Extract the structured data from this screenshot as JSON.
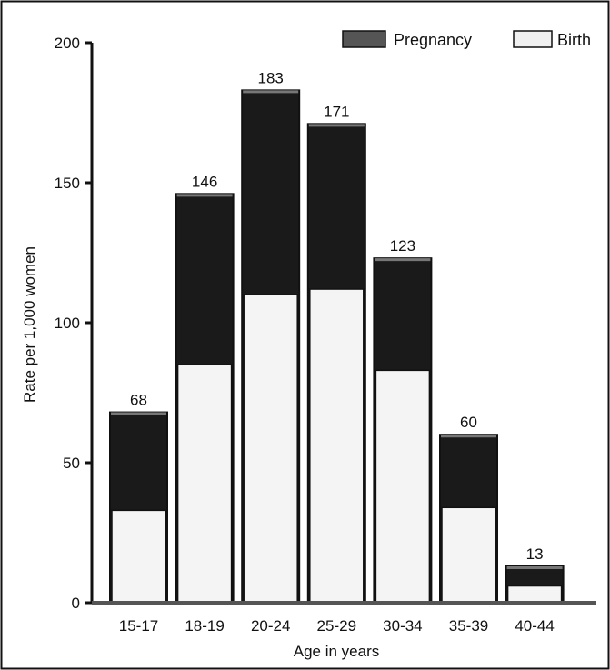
{
  "chart_data": {
    "type": "bar",
    "categories": [
      "15-17",
      "18-19",
      "20-24",
      "25-29",
      "30-34",
      "35-39",
      "40-44"
    ],
    "series": [
      {
        "name": "Pregnancy",
        "values": [
          68,
          146,
          183,
          171,
          123,
          60,
          13
        ],
        "color": "#1a1a1a"
      },
      {
        "name": "Birth",
        "values": [
          33,
          85,
          110,
          112,
          83,
          34,
          6
        ],
        "color": "#f4f4f4"
      }
    ],
    "data_labels": [
      "68",
      "146",
      "183",
      "171",
      "123",
      "60",
      "13"
    ],
    "xlabel": "Age in years",
    "ylabel": "Rate per 1,000 women",
    "ylim": [
      0,
      200
    ],
    "yticks": [
      0,
      50,
      100,
      150,
      200
    ],
    "grid": false,
    "legend_position": "top-right",
    "note": "Pregnancy values are totals; Birth bars are overlaid from the baseline inside each Pregnancy bar."
  }
}
